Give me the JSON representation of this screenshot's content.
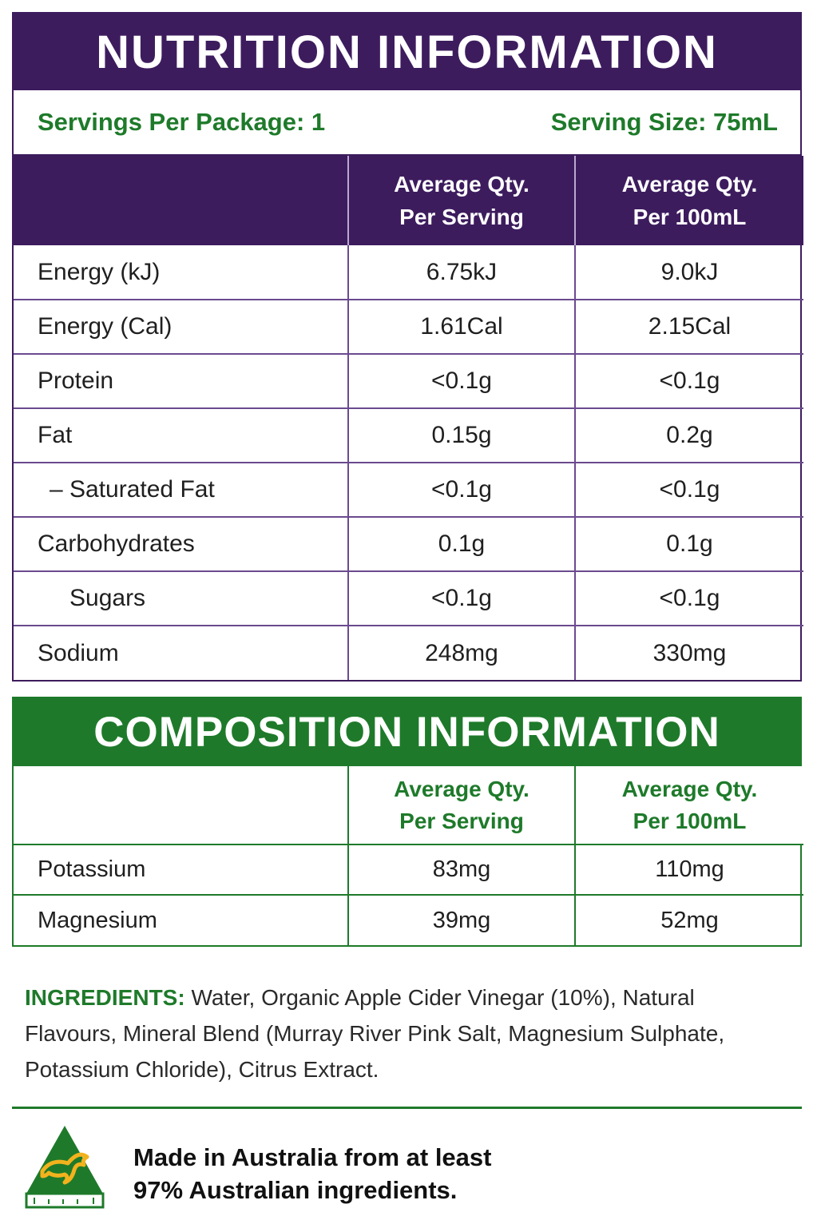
{
  "nutrition": {
    "title": "NUTRITION INFORMATION",
    "servings_per_package": "Servings Per Package: 1",
    "serving_size": "Serving Size: 75mL",
    "columns": {
      "per_serving": [
        "Average Qty.",
        "Per Serving"
      ],
      "per_100ml": [
        "Average Qty.",
        "Per 100mL"
      ]
    },
    "rows": [
      {
        "label": "Energy (kJ)",
        "per_serving": "6.75kJ",
        "per_100ml": "9.0kJ"
      },
      {
        "label": "Energy (Cal)",
        "per_serving": "1.61Cal",
        "per_100ml": "2.15Cal"
      },
      {
        "label": "Protein",
        "per_serving": "<0.1g",
        "per_100ml": "<0.1g"
      },
      {
        "label": "Fat",
        "per_serving": "0.15g",
        "per_100ml": "0.2g"
      },
      {
        "label": "– Saturated Fat",
        "per_serving": "<0.1g",
        "per_100ml": "<0.1g"
      },
      {
        "label": "Carbohydrates",
        "per_serving": "0.1g",
        "per_100ml": "0.1g"
      },
      {
        "label": "Sugars",
        "per_serving": "<0.1g",
        "per_100ml": "<0.1g"
      },
      {
        "label": "Sodium",
        "per_serving": "248mg",
        "per_100ml": "330mg"
      }
    ]
  },
  "composition": {
    "title": "COMPOSITION INFORMATION",
    "columns": {
      "per_serving": [
        "Average Qty.",
        "Per Serving"
      ],
      "per_100ml": [
        "Average Qty.",
        "Per 100mL"
      ]
    },
    "rows": [
      {
        "label": "Potassium",
        "per_serving": "83mg",
        "per_100ml": "110mg"
      },
      {
        "label": "Magnesium",
        "per_serving": "39mg",
        "per_100ml": "52mg"
      }
    ]
  },
  "ingredients": {
    "label": "INGREDIENTS:",
    "text": " Water, Organic Apple Cider Vinegar (10%), Natural Flavours, Mineral Blend (Murray River Pink Salt, Magnesium Sulphate, Potassium Chloride), Citrus Extract."
  },
  "origin": {
    "logo_icon": "australian-made-kangaroo-icon",
    "line1": "Made in Australia from at least",
    "line2": "97% Australian ingredients."
  },
  "colors": {
    "purple": "#3d1c5e",
    "green": "#1e7a2a",
    "gold": "#f2b21d"
  }
}
